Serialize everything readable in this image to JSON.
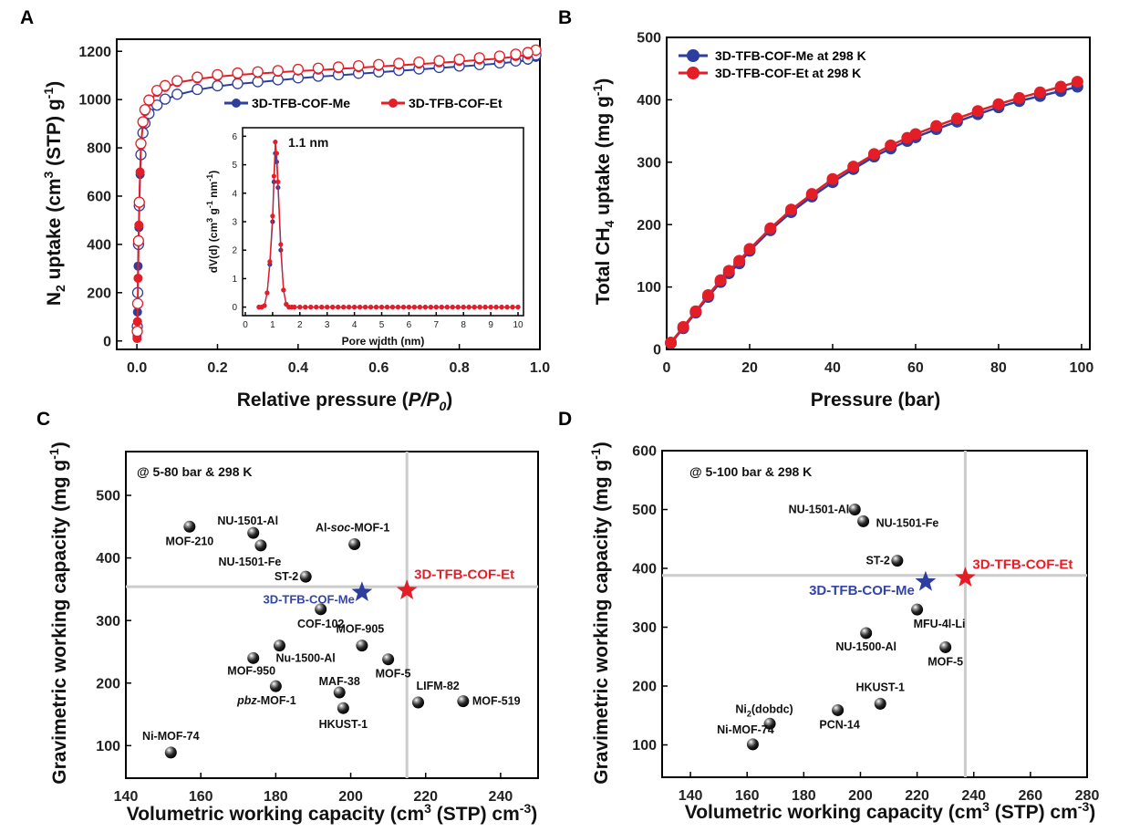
{
  "panels": {
    "a": "A",
    "b": "B",
    "c": "C",
    "d": "D"
  },
  "colors": {
    "me": "#2E3E9E",
    "et": "#E41E26",
    "me_text": "#3344AA",
    "et_text": "#E41E26",
    "sphere": "#111111",
    "crosshair": "#CCCCCC"
  },
  "chart_data": [
    {
      "id": "A",
      "type": "line",
      "xlabel": "Relative pressure (P/P0)",
      "ylabel": "N2 uptake (cm3 (STP) g-1)",
      "xlim": [
        0,
        1.0
      ],
      "ylim": [
        0,
        1250
      ],
      "xticks": [
        "0.0",
        "0.2",
        "0.4",
        "0.6",
        "0.8",
        "1.0"
      ],
      "yticks": [
        "0",
        "200",
        "400",
        "600",
        "800",
        "1000",
        "1200"
      ],
      "legend": [
        "3D-TFB-COF-Me",
        "3D-TFB-COF-Et"
      ],
      "legend_position": "upper-right",
      "series": [
        {
          "name": "3D-TFB-COF-Me",
          "type": "adsorption",
          "x": [
            0.0005,
            0.001,
            0.0015,
            0.002,
            0.003,
            0.004,
            0.005,
            0.006,
            0.008,
            0.01,
            0.015,
            0.02,
            0.03,
            0.05,
            0.07,
            0.1,
            0.15,
            0.2,
            0.25,
            0.3,
            0.35,
            0.4,
            0.45,
            0.5,
            0.55,
            0.6,
            0.65,
            0.7,
            0.75,
            0.8,
            0.85,
            0.9,
            0.94,
            0.97,
            0.99
          ],
          "y": [
            20,
            60,
            120,
            200,
            310,
            400,
            470,
            560,
            690,
            770,
            860,
            900,
            940,
            975,
            1000,
            1020,
            1040,
            1055,
            1065,
            1072,
            1080,
            1088,
            1095,
            1100,
            1107,
            1113,
            1119,
            1125,
            1131,
            1137,
            1143,
            1150,
            1157,
            1163,
            1175
          ]
        },
        {
          "name": "3D-TFB-COF-Me",
          "type": "desorption",
          "x": [
            0.99,
            0.97,
            0.94,
            0.9,
            0.85,
            0.8,
            0.75,
            0.7,
            0.65,
            0.6,
            0.55,
            0.5,
            0.45,
            0.4,
            0.35,
            0.3,
            0.25,
            0.2,
            0.15,
            0.1,
            0.07,
            0.05,
            0.03,
            0.02,
            0.015,
            0.01,
            0.006,
            0.004,
            0.002,
            0.001
          ],
          "y": [
            1185,
            1168,
            1160,
            1152,
            1145,
            1139,
            1133,
            1127,
            1121,
            1115,
            1109,
            1103,
            1097,
            1090,
            1082,
            1074,
            1066,
            1057,
            1042,
            1022,
            1002,
            977,
            942,
            902,
            862,
            772,
            560,
            400,
            200,
            60
          ]
        },
        {
          "name": "3D-TFB-COF-Et",
          "type": "adsorption",
          "x": [
            0.0005,
            0.001,
            0.0015,
            0.002,
            0.003,
            0.004,
            0.005,
            0.006,
            0.008,
            0.01,
            0.015,
            0.02,
            0.03,
            0.05,
            0.07,
            0.1,
            0.15,
            0.2,
            0.25,
            0.3,
            0.35,
            0.4,
            0.45,
            0.5,
            0.55,
            0.6,
            0.65,
            0.7,
            0.75,
            0.8,
            0.85,
            0.9,
            0.94,
            0.97,
            0.99
          ],
          "y": [
            10,
            40,
            80,
            150,
            260,
            410,
            480,
            570,
            700,
            810,
            900,
            950,
            990,
            1030,
            1050,
            1070,
            1085,
            1095,
            1102,
            1108,
            1113,
            1118,
            1122,
            1127,
            1132,
            1137,
            1142,
            1147,
            1152,
            1158,
            1164,
            1170,
            1178,
            1185,
            1200
          ]
        },
        {
          "name": "3D-TFB-COF-Et",
          "type": "desorption",
          "x": [
            0.99,
            0.97,
            0.94,
            0.9,
            0.85,
            0.8,
            0.75,
            0.7,
            0.65,
            0.6,
            0.55,
            0.5,
            0.45,
            0.4,
            0.35,
            0.3,
            0.25,
            0.2,
            0.15,
            0.1,
            0.07,
            0.05,
            0.03,
            0.02,
            0.015,
            0.01,
            0.006,
            0.004,
            0.002,
            0.001
          ],
          "y": [
            1205,
            1195,
            1188,
            1180,
            1173,
            1167,
            1161,
            1155,
            1150,
            1145,
            1140,
            1135,
            1130,
            1125,
            1120,
            1115,
            1110,
            1103,
            1093,
            1078,
            1058,
            1038,
            998,
            958,
            908,
            818,
            575,
            415,
            155,
            40
          ]
        }
      ],
      "inset": {
        "type": "line",
        "xlabel": "Pore width (nm)",
        "ylabel": "dV(d) (cm3 g-1 nm-1)",
        "xlim": [
          0,
          10
        ],
        "ylim": [
          0,
          6.3
        ],
        "xticks": [
          "0",
          "1",
          "2",
          "3",
          "4",
          "5",
          "6",
          "7",
          "8",
          "9",
          "10"
        ],
        "yticks": [
          "0",
          "1",
          "2",
          "3",
          "4",
          "5",
          "6"
        ],
        "annotation": "1.1 nm",
        "series": [
          {
            "name": "3D-TFB-COF-Me",
            "x": [
              0.5,
              0.6,
              0.7,
              0.8,
              0.9,
              1.0,
              1.05,
              1.1,
              1.15,
              1.2,
              1.3,
              1.4,
              1.5,
              1.6,
              1.7,
              1.8,
              2.0,
              2.2,
              2.4,
              2.6,
              2.8,
              3.0,
              3.2,
              3.4,
              3.6,
              3.8,
              4.0,
              4.2,
              4.4,
              4.6,
              4.8,
              5.0,
              5.2,
              5.4,
              5.6,
              5.8,
              6.0,
              6.2,
              6.4,
              6.6,
              6.8,
              7.0,
              7.2,
              7.4,
              7.6,
              7.8,
              8.0,
              8.2,
              8.4,
              8.6,
              8.8,
              9.0,
              9.2,
              9.4,
              9.6,
              9.8,
              10.0
            ],
            "y": [
              0,
              0,
              0.05,
              0.5,
              1.5,
              3.0,
              4.4,
              5.4,
              5.1,
              4.2,
              2.0,
              0.6,
              0.1,
              0,
              0,
              0,
              0,
              0,
              0,
              0,
              0,
              0,
              0,
              0,
              0,
              0,
              0,
              0,
              0,
              0,
              0,
              0,
              0,
              0,
              0,
              0,
              0,
              0,
              0,
              0,
              0,
              0,
              0,
              0,
              0,
              0,
              0,
              0,
              0,
              0,
              0,
              0,
              0,
              0,
              0,
              0,
              0
            ]
          },
          {
            "name": "3D-TFB-COF-Et",
            "x": [
              0.5,
              0.6,
              0.7,
              0.8,
              0.9,
              1.0,
              1.05,
              1.1,
              1.15,
              1.2,
              1.3,
              1.4,
              1.5,
              1.6,
              1.7,
              1.8,
              2.0,
              2.2,
              2.4,
              2.6,
              2.8,
              3.0,
              3.2,
              3.4,
              3.6,
              3.8,
              4.0,
              4.2,
              4.4,
              4.6,
              4.8,
              5.0,
              5.2,
              5.4,
              5.6,
              5.8,
              6.0,
              6.2,
              6.4,
              6.6,
              6.8,
              7.0,
              7.2,
              7.4,
              7.6,
              7.8,
              8.0,
              8.2,
              8.4,
              8.6,
              8.8,
              9.0,
              9.2,
              9.4,
              9.6,
              9.8,
              10.0
            ],
            "y": [
              0,
              0,
              0.05,
              0.5,
              1.6,
              3.2,
              4.6,
              5.8,
              5.4,
              4.4,
              2.2,
              0.6,
              0.1,
              0,
              0,
              0,
              0,
              0,
              0,
              0,
              0,
              0,
              0,
              0,
              0,
              0,
              0,
              0,
              0,
              0,
              0,
              0,
              0,
              0,
              0,
              0,
              0,
              0,
              0,
              0,
              0,
              0,
              0,
              0,
              0,
              0,
              0,
              0,
              0,
              0,
              0,
              0,
              0,
              0,
              0,
              0,
              0
            ]
          }
        ]
      }
    },
    {
      "id": "B",
      "type": "line",
      "xlabel": "Pressure (bar)",
      "ylabel": "Total CH4 uptake (mg g-1)",
      "xlim": [
        0,
        102
      ],
      "ylim": [
        0,
        500
      ],
      "xticks": [
        "0",
        "20",
        "40",
        "60",
        "80",
        "100"
      ],
      "yticks": [
        "0",
        "100",
        "200",
        "300",
        "400",
        "500"
      ],
      "legend": [
        "3D-TFB-COF-Me at 298 K",
        "3D-TFB-COF-Et at 298 K"
      ],
      "legend_position": "upper-left",
      "series": [
        {
          "name": "3D-TFB-COF-Me at 298 K",
          "x": [
            1,
            4,
            7,
            10,
            13,
            15,
            17.5,
            20,
            25,
            30,
            35,
            40,
            45,
            50,
            54,
            58,
            60,
            65,
            70,
            75,
            80,
            85,
            90,
            95,
            99
          ],
          "y": [
            10,
            34,
            59,
            84,
            108,
            122,
            138,
            158,
            191,
            220,
            245,
            268,
            289,
            309,
            322,
            334,
            340,
            353,
            365,
            377,
            388,
            398,
            406,
            414,
            421
          ]
        },
        {
          "name": "3D-TFB-COF-Et at 298 K",
          "x": [
            1,
            4,
            7,
            10,
            13,
            15,
            17.5,
            20,
            25,
            30,
            35,
            40,
            45,
            50,
            54,
            58,
            60,
            65,
            70,
            75,
            80,
            85,
            90,
            95,
            99
          ],
          "y": [
            11,
            36,
            61,
            87,
            111,
            126,
            142,
            161,
            194,
            224,
            249,
            273,
            293,
            313,
            327,
            339,
            345,
            358,
            370,
            382,
            393,
            403,
            412,
            421,
            429
          ]
        }
      ]
    },
    {
      "id": "C",
      "type": "scatter",
      "annotation": "@ 5-80 bar & 298 K",
      "xlabel": "Volumetric working capacity (cm3 (STP) cm-3)",
      "ylabel": "Gravimetric working capacity (mg g-1)",
      "xlim": [
        140,
        250
      ],
      "ylim": [
        60,
        550
      ],
      "xticks": [
        "140",
        "160",
        "180",
        "200",
        "220",
        "240"
      ],
      "yticks": [
        "100",
        "200",
        "300",
        "400",
        "500"
      ],
      "crosshair": {
        "x": 215,
        "y": 354
      },
      "points": [
        {
          "name": "MOF-210",
          "x": 157,
          "y": 450
        },
        {
          "name": "NU-1501-Al",
          "x": 174,
          "y": 440
        },
        {
          "name": "NU-1501-Fe",
          "x": 176,
          "y": 420
        },
        {
          "name": "Al-soc-MOF-1",
          "x": 201,
          "y": 422
        },
        {
          "name": "ST-2",
          "x": 188,
          "y": 370
        },
        {
          "name": "COF-102",
          "x": 192,
          "y": 318
        },
        {
          "name": "MOF-905",
          "x": 203,
          "y": 260
        },
        {
          "name": "Nu-1500-Al",
          "x": 181,
          "y": 260
        },
        {
          "name": "MOF-950",
          "x": 174,
          "y": 240
        },
        {
          "name": "MOF-5",
          "x": 210,
          "y": 238
        },
        {
          "name": "pbz-MOF-1",
          "x": 180,
          "y": 195
        },
        {
          "name": "MAF-38",
          "x": 197,
          "y": 185
        },
        {
          "name": "HKUST-1",
          "x": 198,
          "y": 160
        },
        {
          "name": "LIFM-82",
          "x": 218,
          "y": 169
        },
        {
          "name": "MOF-519",
          "x": 230,
          "y": 171
        },
        {
          "name": "Ni-MOF-74",
          "x": 152,
          "y": 89
        }
      ],
      "highlights": [
        {
          "name": "3D-TFB-COF-Me",
          "x": 203,
          "y": 345
        },
        {
          "name": "3D-TFB-COF-Et",
          "x": 215,
          "y": 348
        }
      ]
    },
    {
      "id": "D",
      "type": "scatter",
      "annotation": "@ 5-100 bar & 298 K",
      "xlabel": "Volumetric working capacity (cm3 (STP) cm-3)",
      "ylabel": "Gravimetric working capacity (mg g-1)",
      "xlim": [
        130,
        280
      ],
      "ylim": [
        60,
        600
      ],
      "xticks": [
        "140",
        "160",
        "180",
        "200",
        "220",
        "240",
        "260",
        "280"
      ],
      "yticks": [
        "100",
        "200",
        "300",
        "400",
        "500",
        "600"
      ],
      "crosshair": {
        "x": 237,
        "y": 388
      },
      "points": [
        {
          "name": "NU-1501-Al",
          "x": 198,
          "y": 500
        },
        {
          "name": "NU-1501-Fe",
          "x": 201,
          "y": 480
        },
        {
          "name": "ST-2",
          "x": 213,
          "y": 413
        },
        {
          "name": "MFU-4l-Li",
          "x": 220,
          "y": 330
        },
        {
          "name": "NU-1500-Al",
          "x": 202,
          "y": 290
        },
        {
          "name": "MOF-5",
          "x": 230,
          "y": 266
        },
        {
          "name": "HKUST-1",
          "x": 207,
          "y": 170
        },
        {
          "name": "PCN-14",
          "x": 192,
          "y": 159
        },
        {
          "name": "Ni2(dobdc)",
          "x": 168,
          "y": 136
        },
        {
          "name": "Ni-MOF-74",
          "x": 162,
          "y": 101
        }
      ],
      "highlights": [
        {
          "name": "3D-TFB-COF-Me",
          "x": 223,
          "y": 377
        },
        {
          "name": "3D-TFB-COF-Et",
          "x": 237,
          "y": 384
        }
      ]
    }
  ]
}
